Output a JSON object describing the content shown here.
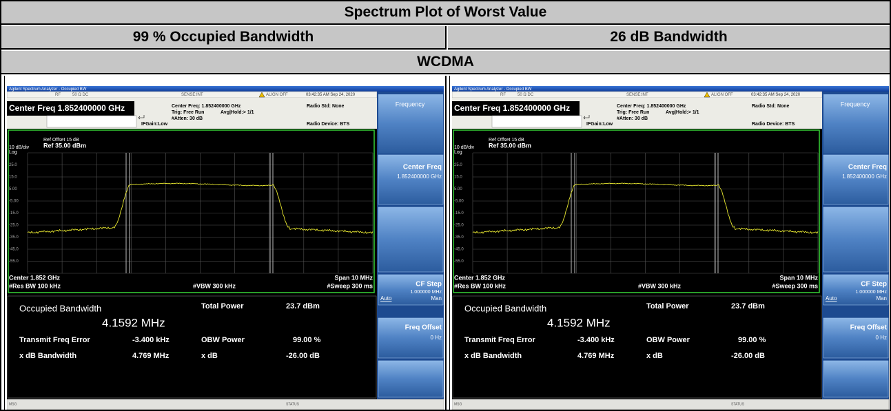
{
  "header": {
    "title": "Spectrum Plot of Worst Value"
  },
  "columns": [
    "99 % Occupied Bandwidth",
    "26 dB Bandwidth"
  ],
  "section": "WCDMA",
  "screens": [
    {
      "window_title": "Agilent Spectrum Analyzer - Occupied BW",
      "status": {
        "rf": "RF",
        "impedance": "50 Ω  DC",
        "sense": "SENSE:INT",
        "align": "ALIGN OFF",
        "time": "03:42:35 AM Sep 24, 2020"
      },
      "center_freq": "Center Freq 1.852400000 GHz",
      "settings": {
        "center": "Center Freq: 1.852400000 GHz",
        "trig": "Trig: Free Run",
        "avg": "Avg|Hold:> 1/1",
        "atten": "#Atten: 30 dB",
        "ifgain": "IFGain:Low",
        "radio_std": "Radio Std: None",
        "radio_device": "Radio Device: BTS"
      },
      "softkeys": {
        "menu": "Frequency",
        "center_freq": "Center Freq",
        "center_freq_value": "1.852400000 GHz",
        "cf_step": "CF Step",
        "cf_step_value": "1.000000 MHz",
        "auto": "Auto",
        "man": "Man",
        "freq_offset": "Freq Offset",
        "freq_offset_value": "0 Hz"
      },
      "plot": {
        "ref_offset": "Ref Offset 15 dB",
        "scale": "10 dB/div",
        "ref_level": "Ref 35.00 dBm",
        "log": "Log",
        "y_labels": [
          "25.0",
          "15.0",
          "5.00",
          "-5.00",
          "-15.0",
          "-25.0",
          "-35.0",
          "-45.0",
          "-55.0"
        ],
        "center": "Center 1.852 GHz",
        "span": "Span 10 MHz",
        "res_bw": "#Res BW 100 kHz",
        "vbw": "#VBW 300 kHz",
        "sweep": "#Sweep 300 ms"
      },
      "results": {
        "occ_label": "Occupied Bandwidth",
        "occ_value": "4.1592 MHz",
        "total_power_label": "Total Power",
        "total_power_value": "23.7 dBm",
        "tfe_label": "Transmit Freq Error",
        "tfe_value": "-3.400 kHz",
        "obw_label": "OBW Power",
        "obw_value": "99.00 %",
        "xdb_bw_label": "x dB Bandwidth",
        "xdb_bw_value": "4.769 MHz",
        "xdb_label": "x dB",
        "xdb_value": "-26.00 dB"
      },
      "footer": {
        "msg": "MSG",
        "status": "STATUS"
      }
    },
    {
      "window_title": "Agilent Spectrum Analyzer - Occupied BW",
      "status": {
        "rf": "RF",
        "impedance": "50 Ω  DC",
        "sense": "SENSE:INT",
        "align": "ALIGN OFF",
        "time": "03:42:35 AM Sep 24, 2020"
      },
      "center_freq": "Center Freq 1.852400000 GHz",
      "settings": {
        "center": "Center Freq: 1.852400000 GHz",
        "trig": "Trig: Free Run",
        "avg": "Avg|Hold:> 1/1",
        "atten": "#Atten: 30 dB",
        "ifgain": "IFGain:Low",
        "radio_std": "Radio Std: None",
        "radio_device": "Radio Device: BTS"
      },
      "softkeys": {
        "menu": "Frequency",
        "center_freq": "Center Freq",
        "center_freq_value": "1.852400000 GHz",
        "cf_step": "CF Step",
        "cf_step_value": "1.000000 MHz",
        "auto": "Auto",
        "man": "Man",
        "freq_offset": "Freq Offset",
        "freq_offset_value": "0 Hz"
      },
      "plot": {
        "ref_offset": "Ref Offset 15 dB",
        "scale": "10 dB/div",
        "ref_level": "Ref 35.00 dBm",
        "log": "Log",
        "y_labels": [
          "25.0",
          "15.0",
          "5.00",
          "-5.00",
          "-15.0",
          "-25.0",
          "-35.0",
          "-45.0",
          "-55.0"
        ],
        "center": "Center 1.852 GHz",
        "span": "Span 10 MHz",
        "res_bw": "#Res BW 100 kHz",
        "vbw": "#VBW 300 kHz",
        "sweep": "#Sweep 300 ms"
      },
      "results": {
        "occ_label": "Occupied Bandwidth",
        "occ_value": "4.1592 MHz",
        "total_power_label": "Total Power",
        "total_power_value": "23.7 dBm",
        "tfe_label": "Transmit Freq Error",
        "tfe_value": "-3.400 kHz",
        "obw_label": "OBW Power",
        "obw_value": "99.00 %",
        "xdb_bw_label": "x dB Bandwidth",
        "xdb_bw_value": "4.769 MHz",
        "xdb_label": "x dB",
        "xdb_value": "-26.00 dB"
      },
      "footer": {
        "msg": "MSG",
        "status": "STATUS"
      }
    }
  ]
}
